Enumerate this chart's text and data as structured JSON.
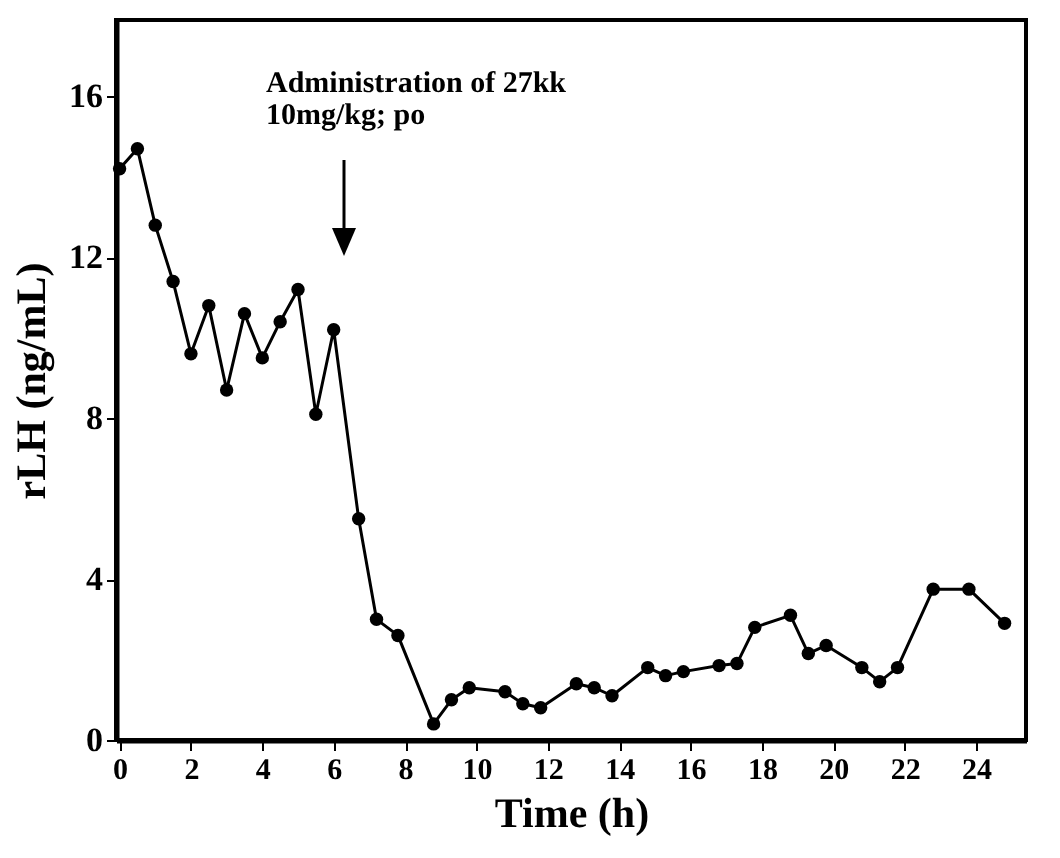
{
  "chart_data": {
    "type": "line",
    "xlabel": "Time (h)",
    "ylabel": "rLH (ng/mL)",
    "x": [
      0,
      0.5,
      1,
      1.5,
      2,
      2.5,
      3,
      3.5,
      4,
      4.5,
      5,
      5.5,
      6,
      6.7,
      7.2,
      7.8,
      8.8,
      9.3,
      9.8,
      10.8,
      11.3,
      11.8,
      12.8,
      13.3,
      13.8,
      14.8,
      15.3,
      15.8,
      16.8,
      17.3,
      17.8,
      18.8,
      19.3,
      19.8,
      20.8,
      21.3,
      21.8,
      22.8,
      23.8,
      24.8
    ],
    "series": [
      {
        "color": "#000000",
        "values": [
          14.2,
          14.7,
          12.8,
          11.4,
          9.6,
          10.8,
          8.7,
          10.6,
          9.5,
          10.4,
          11.2,
          8.1,
          10.2,
          5.5,
          3.0,
          2.6,
          0.4,
          1.0,
          1.3,
          1.2,
          0.9,
          0.8,
          1.4,
          1.3,
          1.1,
          1.8,
          1.6,
          1.7,
          1.85,
          1.9,
          2.8,
          3.1,
          2.15,
          2.35,
          1.8,
          1.45,
          1.8,
          3.75,
          3.75,
          2.9
        ]
      }
    ],
    "xlim": [
      -0.1,
      25.4
    ],
    "ylim": [
      0,
      17.9
    ],
    "xticks": [
      0,
      2,
      4,
      6,
      8,
      10,
      12,
      14,
      16,
      18,
      20,
      22,
      24
    ],
    "yticks": [
      0,
      4,
      8,
      12,
      16
    ],
    "marker": "circle",
    "line_style": "solid",
    "grid": false,
    "annotations": [
      "Administration of 27kk\n10mg/kg; po"
    ]
  }
}
